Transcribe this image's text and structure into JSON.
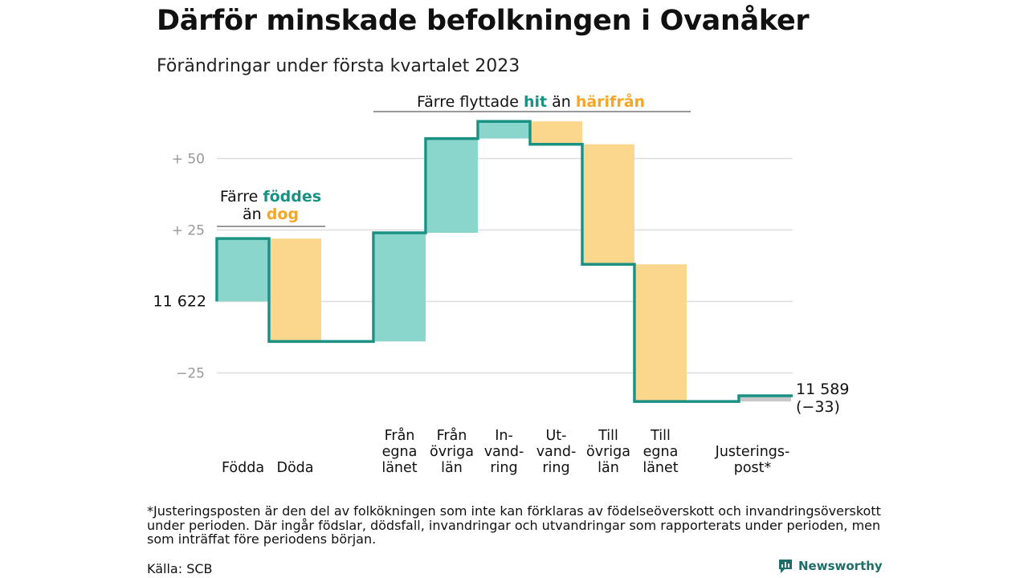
{
  "title": "Därför minskade befolkningen i Ovanåker",
  "subtitle": "Förändringar under första kvartalet 2023",
  "footnote": "*Justeringsposten är den del av folkökningen som inte kan förklaras av födelseöverskott och invandringsöverskott under perioden. Där ingår födslar, dödsfall, invandringar och utvandringar som rapporterats under perioden, men som inträffat före periodens början.",
  "source": "Källa: SCB",
  "brand": "Newsworthy",
  "colors": {
    "teal": "#8ad6cc",
    "teal_line": "#1a9183",
    "yellow": "#fbd68d",
    "yellow_text": "#f5a623",
    "grey": "#c8c8c8",
    "grid": "#dddddd",
    "tick_text": "#999999"
  },
  "chart_data": {
    "type": "waterfall",
    "start_value": 11622,
    "end_value": 11589,
    "start_label": "11 622",
    "end_label": [
      "11 589",
      "(−33)"
    ],
    "categories": [
      {
        "label": [
          "Födda"
        ],
        "value": 22,
        "color": "teal"
      },
      {
        "label": [
          "Döda"
        ],
        "value": -36,
        "color": "yellow"
      },
      {
        "label": [
          ""
        ],
        "value": 0,
        "color": "none"
      },
      {
        "label": [
          "Från",
          "egna",
          "länet"
        ],
        "value": 38,
        "color": "teal"
      },
      {
        "label": [
          "Från",
          "övriga",
          "län"
        ],
        "value": 33,
        "color": "teal"
      },
      {
        "label": [
          "In-",
          "vand-",
          "ring"
        ],
        "value": 6,
        "color": "teal"
      },
      {
        "label": [
          "Ut-",
          "vand-",
          "ring"
        ],
        "value": -8,
        "color": "yellow"
      },
      {
        "label": [
          "Till",
          "övriga",
          "län"
        ],
        "value": -42,
        "color": "yellow"
      },
      {
        "label": [
          "Till",
          "egna",
          "länet"
        ],
        "value": -48,
        "color": "yellow"
      },
      {
        "label": [
          ""
        ],
        "value": 0,
        "color": "none"
      },
      {
        "label": [
          "Justerings-",
          "post*"
        ],
        "value": 2,
        "color": "grey"
      }
    ],
    "y_ticks": [
      {
        "value": 50,
        "label": "+ 50"
      },
      {
        "value": 25,
        "label": "+ 25"
      },
      {
        "value": -25,
        "label": "−25"
      }
    ],
    "ylim": [
      -40,
      65
    ],
    "annotations": [
      {
        "parts": [
          [
            "Färre ",
            "dark"
          ],
          [
            "föddes",
            "teal"
          ]
        ],
        "line2": [
          [
            "än ",
            "dark"
          ],
          [
            "dog",
            "yellow"
          ]
        ]
      },
      {
        "parts": [
          [
            "Färre flyttade ",
            "dark"
          ],
          [
            "hit",
            "teal"
          ],
          [
            " än ",
            "dark"
          ],
          [
            "härifrån",
            "yellow"
          ]
        ]
      }
    ]
  }
}
